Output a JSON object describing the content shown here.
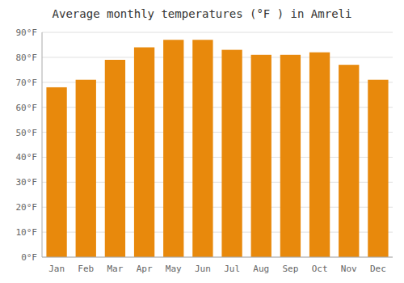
{
  "chart_data": {
    "type": "bar",
    "title": "Average monthly temperatures (°F ) in Amreli",
    "categories": [
      "Jan",
      "Feb",
      "Mar",
      "Apr",
      "May",
      "Jun",
      "Jul",
      "Aug",
      "Sep",
      "Oct",
      "Nov",
      "Dec"
    ],
    "values": [
      68,
      71,
      79,
      84,
      87,
      87,
      83,
      81,
      81,
      82,
      77,
      71
    ],
    "color": "#E8890C",
    "ylim": [
      0,
      90
    ],
    "yticks": [
      {
        "value": 0,
        "label": "0°F"
      },
      {
        "value": 10,
        "label": "10°F"
      },
      {
        "value": 20,
        "label": "20°F"
      },
      {
        "value": 30,
        "label": "30°F"
      },
      {
        "value": 40,
        "label": "40°F"
      },
      {
        "value": 50,
        "label": "50°F"
      },
      {
        "value": 60,
        "label": "60°F"
      },
      {
        "value": 70,
        "label": "70°F"
      },
      {
        "value": 80,
        "label": "80°F"
      },
      {
        "value": 90,
        "label": "90°F"
      }
    ],
    "grid": true
  }
}
